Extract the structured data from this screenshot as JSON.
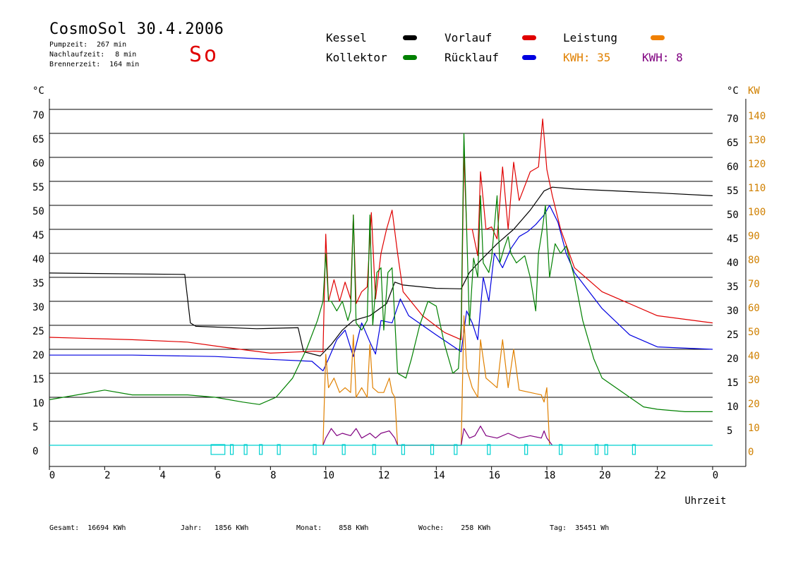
{
  "header": {
    "title": "CosmoSol 30.4.2006",
    "day": "So",
    "stats": [
      {
        "label": "Pumpzeit:",
        "value": "267 min"
      },
      {
        "label": "Nachlaufzeit:",
        "value": "8 min"
      },
      {
        "label": "Brennerzeit:",
        "value": "164 min"
      }
    ]
  },
  "legend": {
    "items": [
      {
        "label": "Kessel",
        "color": "#000000"
      },
      {
        "label": "Vorlauf",
        "color": "#e00000"
      },
      {
        "label": "Leistung",
        "color": "#f08000"
      },
      {
        "label": "Kollektor",
        "color": "#008000"
      },
      {
        "label": "Rücklauf",
        "color": "#0000e0"
      }
    ],
    "kwh_a": "KWH: 35",
    "kwh_b": "KWH: 8",
    "kwh_a_color": "#e08000",
    "kwh_b_color": "#800080"
  },
  "footer": [
    {
      "label": "Gesamt:",
      "value": "16694 KWh"
    },
    {
      "label": "Jahr:",
      "value": "1856 KWh"
    },
    {
      "label": "Monat:",
      "value": "858 KWh"
    },
    {
      "label": "Woche:",
      "value": "258 KWh"
    },
    {
      "label": "Tag:",
      "value": "35451 Wh"
    }
  ],
  "chart_data": {
    "type": "line",
    "xlabel": "Uhrzeit",
    "ylabel_left": "°C",
    "ylabel_right_1": "°C",
    "ylabel_right_2": "KW",
    "x_ticks": [
      "0",
      "2",
      "4",
      "6",
      "8",
      "10",
      "12",
      "14",
      "16",
      "18",
      "20",
      "22",
      "0"
    ],
    "xlim": [
      0,
      24
    ],
    "ylim": [
      0,
      70
    ],
    "y_ticks": [
      0,
      5,
      10,
      15,
      20,
      25,
      30,
      35,
      40,
      45,
      50,
      55,
      60,
      65,
      70
    ],
    "y2_ticks": [
      "0",
      "10",
      "20",
      "30",
      "40",
      "50",
      "60",
      "70",
      "80",
      "90",
      "100",
      "110",
      "120",
      "130",
      "140"
    ],
    "grid": true,
    "series": [
      {
        "name": "Kessel",
        "color": "#000000",
        "x": [
          0,
          4.9,
          5.1,
          5.3,
          7.5,
          9.0,
          9.2,
          9.8,
          10.2,
          10.6,
          11.0,
          11.6,
          12.2,
          12.5,
          12.8,
          14.0,
          14.9,
          15.2,
          15.6,
          16.2,
          16.8,
          17.4,
          17.9,
          18.2,
          19.0,
          22.0,
          24.0
        ],
        "y": [
          35.9,
          35.6,
          25.5,
          24.8,
          24.3,
          24.5,
          19.5,
          18.6,
          21.0,
          24.0,
          26.0,
          27.0,
          29.5,
          34.0,
          33.4,
          32.7,
          32.6,
          36.0,
          38.5,
          42.0,
          45.0,
          49.0,
          53.0,
          53.8,
          53.4,
          52.6,
          52.0
        ]
      },
      {
        "name": "Vorlauf",
        "color": "#e00000",
        "x": [
          0,
          3.0,
          5.0,
          6.5,
          8.0,
          9.6,
          9.9,
          10.0,
          10.1,
          10.3,
          10.5,
          10.7,
          10.9,
          11.0,
          11.1,
          11.3,
          11.5,
          11.65,
          11.8,
          12.0,
          12.2,
          12.4,
          12.6,
          12.8,
          13.5,
          14.3,
          14.9,
          15.0,
          15.1,
          15.3,
          15.5,
          15.6,
          15.8,
          16.0,
          16.2,
          16.4,
          16.6,
          16.8,
          17.0,
          17.4,
          17.7,
          17.85,
          18.0,
          18.2,
          18.5,
          19.0,
          20.0,
          22.0,
          24.0
        ],
        "y": [
          22.5,
          22.0,
          21.5,
          20.3,
          19.2,
          19.6,
          19.5,
          44.0,
          30.0,
          34.5,
          30.0,
          34.0,
          30.5,
          48.0,
          29.5,
          32.0,
          33.0,
          48.5,
          30.5,
          40.0,
          45.0,
          49.0,
          40.0,
          32.0,
          27.0,
          23.5,
          22.0,
          61.0,
          45.0,
          45.0,
          39.5,
          57.0,
          45.0,
          45.5,
          43.0,
          58.0,
          45.0,
          59.0,
          51.0,
          57.0,
          58.0,
          68.0,
          57.5,
          52.0,
          45.0,
          37.0,
          32.0,
          27.0,
          25.5
        ]
      },
      {
        "name": "Rücklauf",
        "color": "#0000e0",
        "x": [
          0,
          3.0,
          6.0,
          8.0,
          9.5,
          9.9,
          10.1,
          10.4,
          10.7,
          11.0,
          11.3,
          11.6,
          11.8,
          12.0,
          12.4,
          12.7,
          13.0,
          14.0,
          14.9,
          15.1,
          15.3,
          15.5,
          15.7,
          15.9,
          16.1,
          16.4,
          16.7,
          17.0,
          17.3,
          17.6,
          17.9,
          18.1,
          18.4,
          18.7,
          19.0,
          20.0,
          21.0,
          22.0,
          24.0
        ],
        "y": [
          18.8,
          18.8,
          18.5,
          17.9,
          17.5,
          15.5,
          18.0,
          22.0,
          24.0,
          18.5,
          25.5,
          21.5,
          19.0,
          26.0,
          25.5,
          30.5,
          27.0,
          23.0,
          19.5,
          28.0,
          25.5,
          22.0,
          35.0,
          30.0,
          40.0,
          37.0,
          41.0,
          43.5,
          44.5,
          46.0,
          48.0,
          50.0,
          46.5,
          40.0,
          36.0,
          28.5,
          23.0,
          20.5,
          20.0
        ]
      },
      {
        "name": "Kollektor",
        "color": "#008000",
        "x": [
          0,
          1.0,
          2.0,
          3.0,
          4.0,
          5.0,
          6.0,
          7.0,
          7.6,
          8.2,
          8.8,
          9.3,
          9.7,
          9.9,
          10.0,
          10.1,
          10.2,
          10.4,
          10.6,
          10.8,
          10.9,
          11.0,
          11.1,
          11.3,
          11.5,
          11.6,
          11.7,
          11.85,
          12.0,
          12.1,
          12.25,
          12.4,
          12.6,
          12.9,
          13.1,
          13.4,
          13.7,
          14.0,
          14.3,
          14.6,
          14.8,
          14.9,
          15.0,
          15.1,
          15.2,
          15.35,
          15.5,
          15.6,
          15.7,
          15.9,
          16.0,
          16.2,
          16.3,
          16.45,
          16.6,
          16.7,
          16.9,
          17.2,
          17.4,
          17.6,
          17.7,
          17.85,
          17.95,
          18.1,
          18.3,
          18.5,
          18.7,
          19.0,
          19.3,
          19.7,
          20.0,
          20.5,
          21.0,
          21.5,
          22.0,
          23.0,
          24.0
        ],
        "y": [
          9.5,
          10.5,
          11.5,
          10.5,
          10.5,
          10.5,
          10.0,
          9.0,
          8.5,
          10.0,
          14.0,
          20.0,
          26.0,
          30.0,
          40.0,
          30.0,
          30.0,
          28.0,
          30.0,
          26.0,
          28.0,
          48.0,
          25.5,
          24.0,
          26.0,
          48.0,
          25.0,
          36.0,
          37.0,
          24.0,
          36.0,
          37.0,
          15.0,
          14.0,
          18.0,
          25.0,
          30.0,
          29.0,
          21.0,
          15.0,
          16.0,
          25.0,
          65.0,
          45.0,
          25.0,
          39.0,
          35.0,
          52.0,
          38.0,
          36.0,
          39.0,
          52.0,
          38.0,
          41.0,
          43.5,
          40.0,
          38.0,
          39.5,
          35.0,
          28.0,
          40.0,
          45.5,
          50.0,
          35.0,
          42.0,
          40.0,
          41.5,
          35.0,
          26.0,
          18.0,
          14.0,
          12.0,
          10.0,
          8.0,
          7.5,
          7.0,
          7.0
        ]
      },
      {
        "name": "Leistung",
        "color": "#e08000",
        "x": [
          9.9,
          10.0,
          10.1,
          10.3,
          10.5,
          10.7,
          10.9,
          11.0,
          11.1,
          11.3,
          11.5,
          11.6,
          11.7,
          11.9,
          12.1,
          12.3,
          12.4,
          12.5,
          12.6,
          14.9,
          15.0,
          15.1,
          15.3,
          15.5,
          15.6,
          15.8,
          16.0,
          16.2,
          16.4,
          16.6,
          16.8,
          17.0,
          17.4,
          17.8,
          17.9,
          18.0,
          18.1
        ],
        "y": [
          0,
          19.0,
          12.0,
          14.0,
          11.0,
          12.0,
          11.0,
          23.0,
          10.0,
          12.0,
          10.0,
          21.0,
          12.0,
          11.0,
          11.0,
          14.0,
          11.0,
          10.0,
          0,
          0,
          27.0,
          16.0,
          12.0,
          10.0,
          22.0,
          14.0,
          13.0,
          12.0,
          22.0,
          12.0,
          20.0,
          11.5,
          11.0,
          10.5,
          9.0,
          12.0,
          0
        ]
      },
      {
        "name": "Leistung 2",
        "color": "#800080",
        "x": [
          9.9,
          10.0,
          10.2,
          10.4,
          10.6,
          10.9,
          11.1,
          11.3,
          11.6,
          11.8,
          12.0,
          12.3,
          12.5,
          12.6,
          14.9,
          15.0,
          15.2,
          15.4,
          15.6,
          15.8,
          16.2,
          16.6,
          17.0,
          17.4,
          17.8,
          17.9,
          18.0,
          18.2
        ],
        "y": [
          0,
          1.5,
          3.5,
          2.0,
          2.5,
          2.0,
          3.5,
          1.5,
          2.5,
          1.5,
          2.5,
          3.0,
          1.5,
          0,
          0,
          3.5,
          1.5,
          2.0,
          4.0,
          2.0,
          1.5,
          2.5,
          1.5,
          2.0,
          1.5,
          3.0,
          1.5,
          0
        ]
      },
      {
        "name": "Pumpe",
        "color": "#00d0d0",
        "x": [
          0,
          24
        ],
        "y": [
          0,
          0
        ]
      }
    ],
    "pump_markers": [
      {
        "x": 5.85,
        "w": 0.5
      },
      {
        "x": 6.55,
        "w": 0.1
      },
      {
        "x": 7.05,
        "w": 0.1
      },
      {
        "x": 7.6,
        "w": 0.1
      },
      {
        "x": 8.25,
        "w": 0.1
      },
      {
        "x": 9.55,
        "w": 0.1
      },
      {
        "x": 10.6,
        "w": 0.1
      },
      {
        "x": 11.7,
        "w": 0.1
      },
      {
        "x": 12.75,
        "w": 0.1
      },
      {
        "x": 13.8,
        "w": 0.1
      },
      {
        "x": 14.65,
        "w": 0.1
      },
      {
        "x": 15.85,
        "w": 0.1
      },
      {
        "x": 17.2,
        "w": 0.1
      },
      {
        "x": 18.45,
        "w": 0.1
      },
      {
        "x": 19.75,
        "w": 0.1
      },
      {
        "x": 20.1,
        "w": 0.1
      },
      {
        "x": 21.1,
        "w": 0.1
      }
    ]
  }
}
